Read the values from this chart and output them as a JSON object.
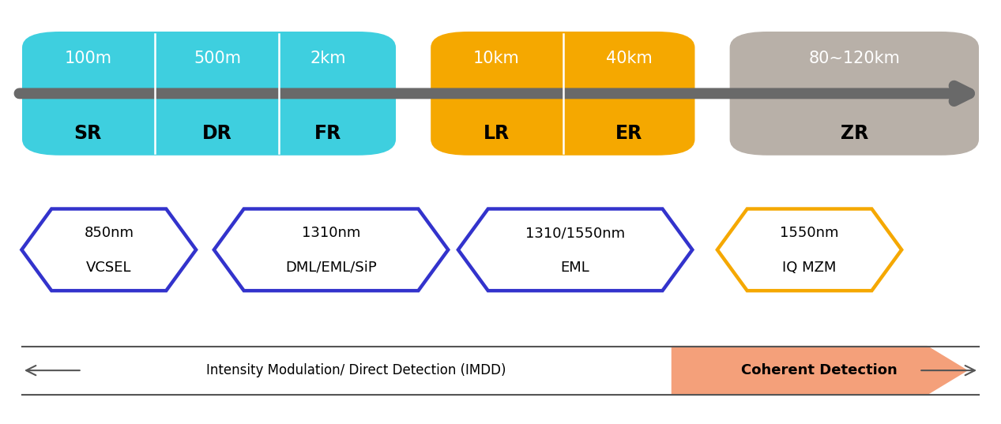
{
  "bg_color": "#ffffff",
  "cyan_color": "#3ecfdf",
  "orange_color": "#f5a800",
  "gray_color": "#b8b0a8",
  "arrow_gray": "#808080",
  "blue_border": "#3333cc",
  "orange_border": "#f5a800",
  "top_labels": [
    "100m",
    "500m",
    "2km",
    "10km",
    "40km",
    "80~120km"
  ],
  "bot_labels": [
    "SR",
    "DR",
    "FR",
    "LR",
    "ER",
    "ZR"
  ],
  "hex_shapes": [
    {
      "line1": "850nm",
      "line2": "VCSEL",
      "bc": "#3333cc"
    },
    {
      "line1": "1310nm",
      "line2": "DML/EML/SiP",
      "bc": "#3333cc"
    },
    {
      "line1": "1310/1550nm",
      "line2": "EML",
      "bc": "#3333cc"
    },
    {
      "line1": "1550nm",
      "line2": "IQ MZM",
      "bc": "#f5a800"
    }
  ],
  "imdd_label": "Intensity Modulation/ Direct Detection (IMDD)",
  "coherent_label": "Coherent Detection",
  "coherent_color": "#f4a07a"
}
